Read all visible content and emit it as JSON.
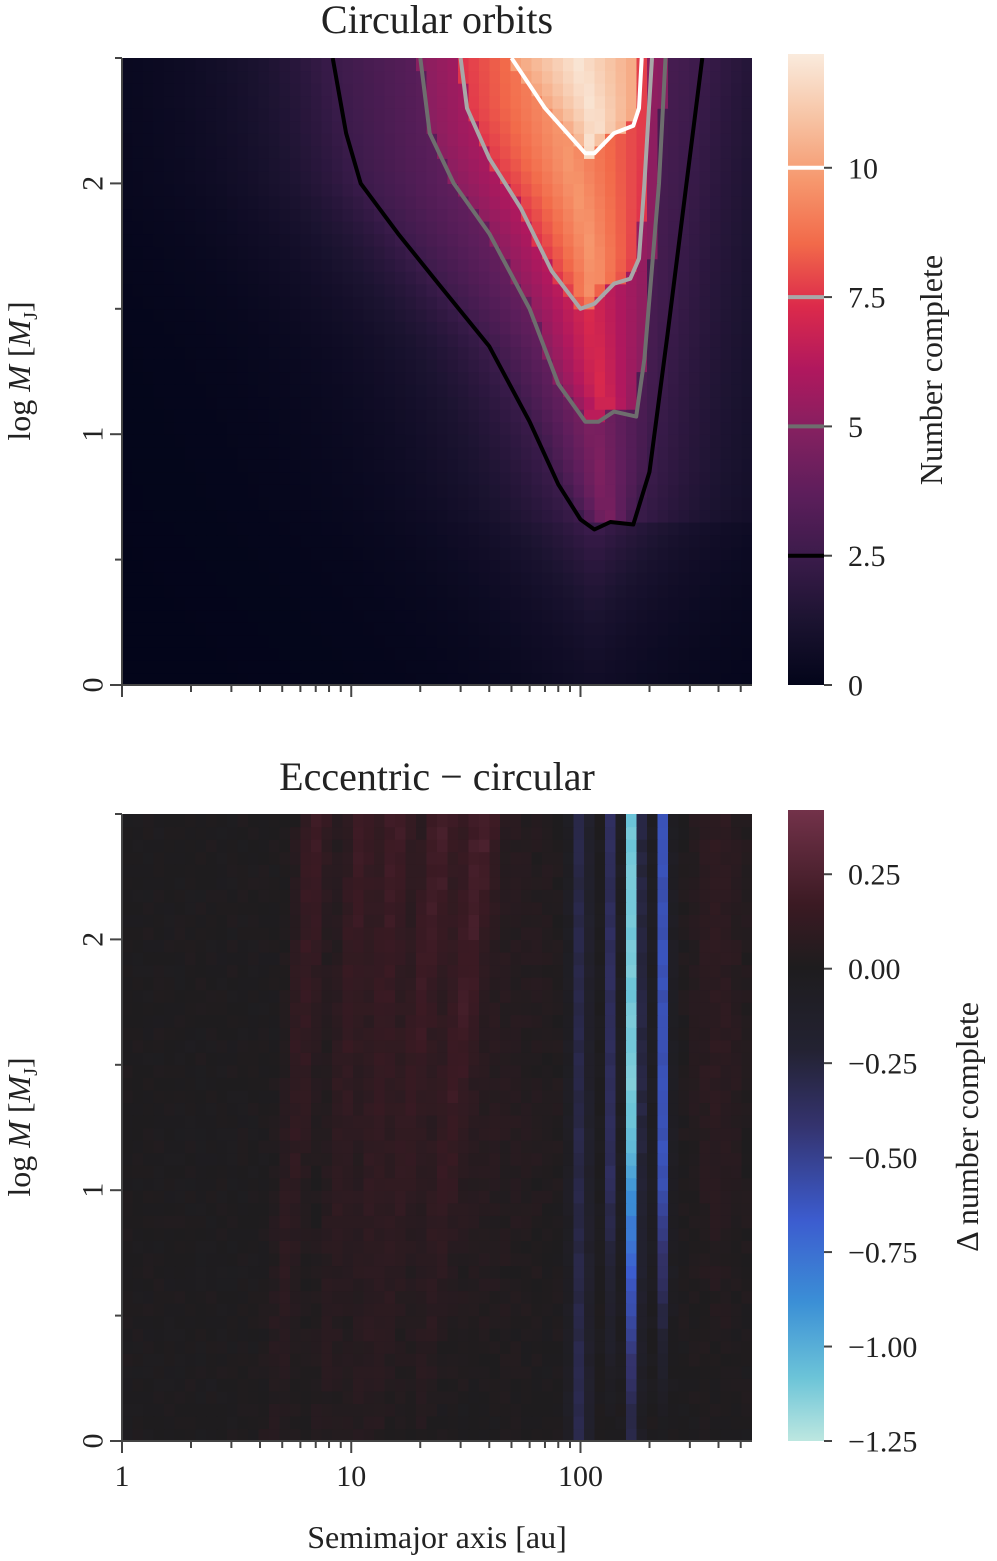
{
  "chart_data": [
    {
      "type": "heatmap",
      "title": "Circular orbits",
      "xlabel": "",
      "ylabel": "log M [M_J]",
      "ylabel_parts": {
        "pre": "log",
        "var": "M",
        "open": "[",
        "unit": "M",
        "sub": "J",
        "close": "]"
      },
      "x_scale": "log",
      "xlim": [
        1,
        560
      ],
      "ylim": [
        0,
        2.5
      ],
      "y_ticks": [
        0,
        1,
        2
      ],
      "y_tick_labels": [
        "0",
        "1",
        "2"
      ],
      "colorbar": {
        "label": "Number complete",
        "range": [
          0,
          12.2
        ],
        "ticks": [
          0,
          2.5,
          5,
          7.5,
          10
        ],
        "tick_labels": [
          "0",
          "2.5",
          "5",
          "7.5",
          "10"
        ],
        "colormap": "rocket"
      },
      "contours": [
        {
          "level": 2.5,
          "color": "#000000",
          "points": [
            [
              8.3,
              2.5
            ],
            [
              9.5,
              2.2
            ],
            [
              11,
              2.0
            ],
            [
              16,
              1.8
            ],
            [
              24,
              1.6
            ],
            [
              40,
              1.35
            ],
            [
              60,
              1.05
            ],
            [
              80,
              0.8
            ],
            [
              100,
              0.66
            ],
            [
              115,
              0.62
            ],
            [
              135,
              0.65
            ],
            [
              170,
              0.64
            ],
            [
              200,
              0.85
            ],
            [
              240,
              1.4
            ],
            [
              290,
              2.0
            ],
            [
              340,
              2.5
            ]
          ]
        },
        {
          "level": 5,
          "color": "#6e6e6e",
          "points": [
            [
              20,
              2.5
            ],
            [
              22,
              2.2
            ],
            [
              28,
              2.0
            ],
            [
              40,
              1.8
            ],
            [
              60,
              1.5
            ],
            [
              80,
              1.2
            ],
            [
              105,
              1.05
            ],
            [
              120,
              1.05
            ],
            [
              140,
              1.09
            ],
            [
              175,
              1.07
            ],
            [
              190,
              1.3
            ],
            [
              220,
              2.0
            ],
            [
              235,
              2.5
            ]
          ]
        },
        {
          "level": 7.5,
          "color": "#a8a8a8",
          "points": [
            [
              30,
              2.5
            ],
            [
              32,
              2.3
            ],
            [
              40,
              2.1
            ],
            [
              55,
              1.9
            ],
            [
              75,
              1.65
            ],
            [
              100,
              1.5
            ],
            [
              115,
              1.52
            ],
            [
              140,
              1.6
            ],
            [
              165,
              1.62
            ],
            [
              180,
              1.7
            ],
            [
              190,
              2.0
            ],
            [
              205,
              2.5
            ]
          ]
        },
        {
          "level": 10,
          "color": "#ffffff",
          "points": [
            [
              50,
              2.5
            ],
            [
              70,
              2.3
            ],
            [
              105,
              2.12
            ],
            [
              115,
              2.12
            ],
            [
              140,
              2.2
            ],
            [
              170,
              2.23
            ],
            [
              180,
              2.3
            ],
            [
              185,
              2.5
            ]
          ]
        }
      ]
    },
    {
      "type": "heatmap",
      "title": "Eccentric − circular",
      "xlabel": "Semimajor axis [au]",
      "ylabel": "log M [M_J]",
      "ylabel_parts": {
        "pre": "log",
        "var": "M",
        "open": "[",
        "unit": "M",
        "sub": "J",
        "close": "]"
      },
      "x_scale": "log",
      "xlim": [
        1,
        560
      ],
      "x_ticks": [
        1,
        10,
        100
      ],
      "x_tick_labels": [
        "1",
        "10",
        "100"
      ],
      "ylim": [
        0,
        2.5
      ],
      "y_ticks": [
        0,
        1,
        2
      ],
      "y_tick_labels": [
        "0",
        "1",
        "2"
      ],
      "colorbar": {
        "label": "Δ number complete",
        "range": [
          -1.25,
          0.42
        ],
        "ticks": [
          -1.25,
          -1.0,
          -0.75,
          -0.5,
          -0.25,
          0.0,
          0.25
        ],
        "tick_labels": [
          "−1.25",
          "−1.00",
          "−0.75",
          "−0.50",
          "−0.25",
          "0.00",
          "0.25"
        ],
        "colormap": "icefire"
      }
    }
  ]
}
